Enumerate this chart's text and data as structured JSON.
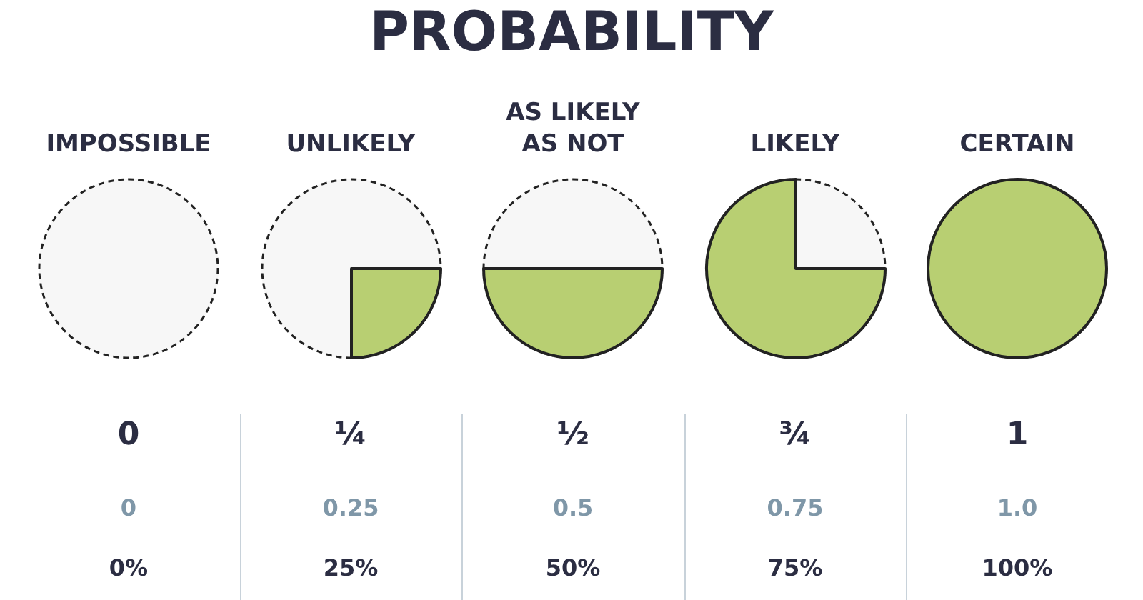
{
  "chart_data": [
    {
      "type": "other",
      "title": "PROBABILITY"
    },
    {
      "type": "pie",
      "title": "IMPOSSIBLE",
      "categories": [
        null,
        null
      ],
      "values": [
        0,
        100
      ],
      "colors": [
        "#b8cf72",
        "#f7f7f7"
      ],
      "annotations": [
        "0",
        "0",
        "0%"
      ]
    },
    {
      "type": "pie",
      "title": "UNLIKELY",
      "categories": [
        null,
        null
      ],
      "values": [
        25,
        75
      ],
      "colors": [
        "#b8cf72",
        "#f7f7f7"
      ],
      "annotations": [
        "¼",
        "0.25",
        "25%"
      ]
    },
    {
      "type": "pie",
      "title": "AS LIKELY AS NOT",
      "categories": [
        null,
        null
      ],
      "values": [
        50,
        50
      ],
      "colors": [
        "#b8cf72",
        "#f7f7f7"
      ],
      "annotations": [
        "½",
        "0.5",
        "50%"
      ]
    },
    {
      "type": "pie",
      "title": "LIKELY",
      "categories": [
        null,
        null
      ],
      "values": [
        75,
        25
      ],
      "colors": [
        "#b8cf72",
        "#f7f7f7"
      ],
      "annotations": [
        "¾",
        "0.75",
        "75%"
      ]
    },
    {
      "type": "pie",
      "title": "CERTAIN",
      "categories": [
        null,
        null
      ],
      "values": [
        100,
        0
      ],
      "colors": [
        "#b8cf72",
        "#f7f7f7"
      ],
      "annotations": [
        "1",
        "1.0",
        "100%"
      ]
    }
  ]
}
